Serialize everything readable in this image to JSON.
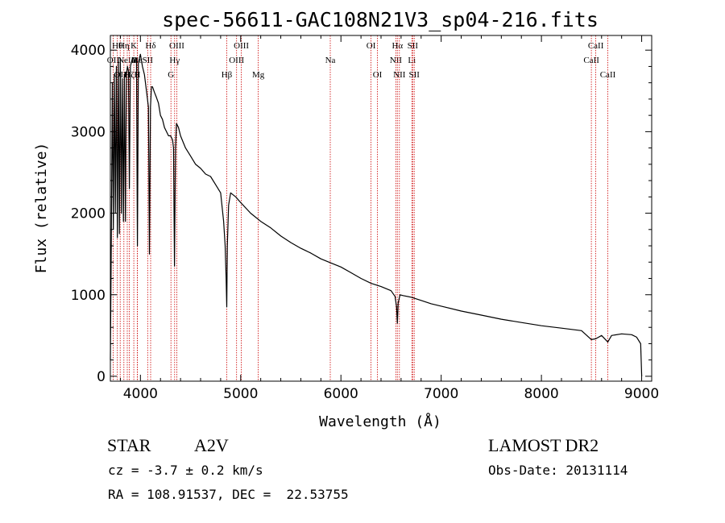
{
  "chart_data": {
    "type": "line",
    "title": "spec-56611-GAC108N21V3_sp04-216.fits",
    "xlabel": "Wavelength (Å)",
    "ylabel": "Flux (relative)",
    "xlim": [
      3700,
      9100
    ],
    "ylim": [
      -60,
      4180
    ],
    "x_ticks": [
      4000,
      5000,
      6000,
      7000,
      8000,
      9000
    ],
    "y_ticks": [
      0,
      1000,
      2000,
      3000,
      4000
    ],
    "grid": false,
    "line_color": "#000000",
    "marker_color": "#cc0000",
    "series": [
      {
        "x": [
          3700,
          3710,
          3720,
          3730,
          3740,
          3750,
          3760,
          3770,
          3780,
          3790,
          3800,
          3810,
          3820,
          3830,
          3840,
          3850,
          3860,
          3870,
          3880,
          3890,
          3900,
          3910,
          3920,
          3930,
          3940,
          3950,
          3960,
          3970,
          3980,
          3990,
          4000,
          4020,
          4040,
          4060,
          4080,
          4090,
          4100,
          4110,
          4120,
          4140,
          4160,
          4180,
          4200,
          4220,
          4240,
          4260,
          4280,
          4300,
          4320,
          4330,
          4340,
          4350,
          4360,
          4380,
          4400,
          4450,
          4500,
          4550,
          4600,
          4650,
          4700,
          4750,
          4800,
          4830,
          4845,
          4855,
          4861,
          4867,
          4880,
          4900,
          4950,
          5000,
          5100,
          5200,
          5300,
          5400,
          5500,
          5600,
          5700,
          5800,
          5900,
          6000,
          6100,
          6200,
          6300,
          6400,
          6500,
          6540,
          6555,
          6563,
          6571,
          6590,
          6620,
          6700,
          6800,
          6900,
          7000,
          7200,
          7400,
          7600,
          7800,
          8000,
          8200,
          8400,
          8498,
          8542,
          8600,
          8662,
          8700,
          8800,
          8900,
          8950,
          8990,
          9000
        ],
        "y": [
          200,
          1700,
          3600,
          1800,
          3700,
          2000,
          3800,
          1700,
          3850,
          1750,
          3900,
          2000,
          3650,
          1900,
          3700,
          1900,
          3700,
          3800,
          3750,
          2300,
          3800,
          3850,
          3900,
          3900,
          3850,
          3900,
          3900,
          1600,
          3850,
          3900,
          3950,
          3800,
          3700,
          3500,
          3300,
          1500,
          3300,
          3550,
          3550,
          3480,
          3420,
          3350,
          3200,
          3150,
          3050,
          3000,
          2950,
          2950,
          2900,
          2800,
          1350,
          2800,
          3100,
          3050,
          2950,
          2800,
          2700,
          2600,
          2550,
          2480,
          2450,
          2350,
          2250,
          1900,
          1600,
          1200,
          850,
          1600,
          2100,
          2250,
          2200,
          2130,
          2000,
          1900,
          1820,
          1720,
          1640,
          1570,
          1510,
          1440,
          1390,
          1340,
          1270,
          1200,
          1140,
          1100,
          1050,
          980,
          850,
          650,
          900,
          1000,
          990,
          970,
          930,
          890,
          860,
          800,
          750,
          700,
          660,
          620,
          590,
          560,
          450,
          460,
          500,
          420,
          500,
          520,
          510,
          480,
          400,
          0
        ]
      }
    ],
    "line_markers": [
      {
        "wl": 3727,
        "row": 1,
        "label": "OII"
      },
      {
        "wl": 3770,
        "row": 0,
        "label": "Hθ"
      },
      {
        "wl": 3798,
        "row": 2,
        "label": "OII"
      },
      {
        "wl": 3835,
        "row": 0,
        "label": "Hη"
      },
      {
        "wl": 3869,
        "row": 1,
        "label": "NeIII"
      },
      {
        "wl": 3889,
        "row": 2,
        "label": "Hζ"
      },
      {
        "wl": 3934,
        "row": 0,
        "label": "K"
      },
      {
        "wl": 3970,
        "row": 1,
        "label": "Hε"
      },
      {
        "wl": 3969,
        "row": 2,
        "label": "H"
      },
      {
        "wl": 4072,
        "row": 1,
        "label": "SII"
      },
      {
        "wl": 4102,
        "row": 0,
        "label": "Hδ"
      },
      {
        "wl": 4304,
        "row": 2,
        "label": "G"
      },
      {
        "wl": 4341,
        "row": 1,
        "label": "Hγ"
      },
      {
        "wl": 4363,
        "row": 0,
        "label": "OIII"
      },
      {
        "wl": 4861,
        "row": 2,
        "label": "Hβ"
      },
      {
        "wl": 4959,
        "row": 1,
        "label": "OIII"
      },
      {
        "wl": 5007,
        "row": 0,
        "label": "OIII"
      },
      {
        "wl": 5175,
        "row": 2,
        "label": "Mg"
      },
      {
        "wl": 5894,
        "row": 1,
        "label": "Na"
      },
      {
        "wl": 6300,
        "row": 0,
        "label": "OI"
      },
      {
        "wl": 6364,
        "row": 2,
        "label": "OI"
      },
      {
        "wl": 6548,
        "row": 1,
        "label": "NII"
      },
      {
        "wl": 6563,
        "row": 0,
        "label": "Hα"
      },
      {
        "wl": 6583,
        "row": 2,
        "label": "NII"
      },
      {
        "wl": 6708,
        "row": 1,
        "label": "Li"
      },
      {
        "wl": 6716,
        "row": 0,
        "label": "SII"
      },
      {
        "wl": 6731,
        "row": 2,
        "label": "SII"
      },
      {
        "wl": 8498,
        "row": 1,
        "label": "CaII"
      },
      {
        "wl": 8542,
        "row": 0,
        "label": "CaII"
      },
      {
        "wl": 8662,
        "row": 2,
        "label": "CaII"
      }
    ]
  },
  "info": {
    "class": "STAR",
    "subclass": "A2V",
    "survey": "LAMOST DR2",
    "cz": "cz = -3.7 ± 0.2 km/s",
    "obs_date": "Obs-Date: 20131114",
    "radec": "RA = 108.91537, DEC =  22.53755"
  }
}
